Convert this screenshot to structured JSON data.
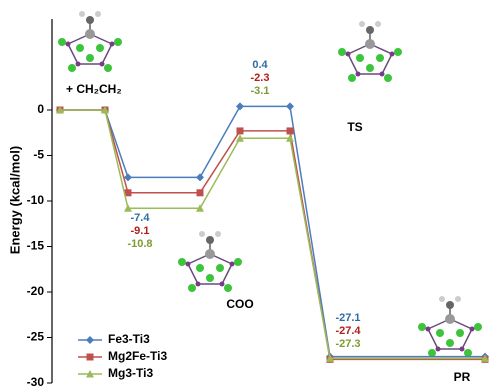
{
  "chart_data": {
    "type": "energy-profile",
    "y_label": "Energy (kcal/mol)",
    "categories": [
      "+ CH₂CH₂",
      "COO",
      "TS",
      "PR"
    ],
    "series": [
      {
        "name": "Fe3-Ti3",
        "color": "#4a7ebb",
        "label_color": "#2e6da4",
        "marker": "diamond",
        "values": [
          0,
          -7.4,
          0.4,
          -27.1
        ]
      },
      {
        "name": "Mg2Fe-Ti3",
        "color": "#c0504d",
        "label_color": "#b0201c",
        "marker": "square",
        "values": [
          0,
          -9.1,
          -2.3,
          -27.4
        ]
      },
      {
        "name": "Mg3-Ti3",
        "color": "#9bbb59",
        "label_color": "#7f9a32",
        "marker": "triangle",
        "values": [
          0,
          -10.8,
          -3.1,
          -27.3
        ]
      }
    ],
    "ylim": [
      -30,
      10
    ],
    "yticks": [
      -30,
      -25,
      -20,
      -15,
      -10,
      -5,
      0
    ],
    "legend": "lower left"
  }
}
